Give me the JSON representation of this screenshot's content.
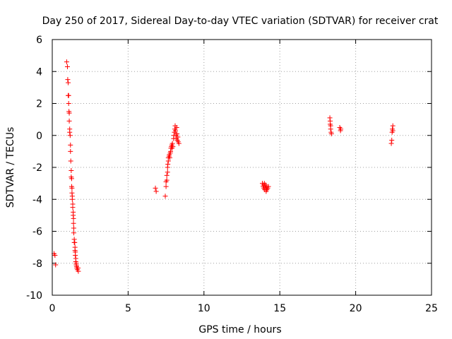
{
  "chart_data": {
    "type": "scatter",
    "title": "Day 250 of 2017, Sidereal Day-to-day VTEC variation (SDTVAR) for receiver crat",
    "xlabel": "GPS time / hours",
    "ylabel": "SDTVAR / TECUs",
    "xlim": [
      0,
      25
    ],
    "ylim": [
      -10,
      6
    ],
    "xticks": [
      0,
      5,
      10,
      15,
      20,
      25
    ],
    "yticks": [
      -10,
      -8,
      -6,
      -4,
      -2,
      0,
      2,
      4,
      6
    ],
    "grid": true,
    "legend": "none",
    "marker": "+",
    "series": [
      {
        "name": "SDTVAR",
        "color": "#ff0000",
        "points": [
          [
            0.12,
            -7.4
          ],
          [
            0.18,
            -7.5
          ],
          [
            0.22,
            -8.1
          ],
          [
            0.95,
            4.6
          ],
          [
            1.0,
            4.3
          ],
          [
            1.02,
            3.5
          ],
          [
            1.05,
            3.3
          ],
          [
            1.05,
            2.5
          ],
          [
            1.08,
            2.5
          ],
          [
            1.08,
            2.0
          ],
          [
            1.1,
            1.5
          ],
          [
            1.12,
            1.4
          ],
          [
            1.12,
            0.9
          ],
          [
            1.15,
            0.4
          ],
          [
            1.15,
            0.2
          ],
          [
            1.18,
            0.0
          ],
          [
            1.2,
            -0.6
          ],
          [
            1.2,
            -1.0
          ],
          [
            1.22,
            -1.6
          ],
          [
            1.25,
            -2.2
          ],
          [
            1.25,
            -2.6
          ],
          [
            1.28,
            -2.7
          ],
          [
            1.28,
            -3.2
          ],
          [
            1.3,
            -3.3
          ],
          [
            1.3,
            -3.6
          ],
          [
            1.32,
            -3.8
          ],
          [
            1.32,
            -4.0
          ],
          [
            1.35,
            -4.3
          ],
          [
            1.35,
            -4.5
          ],
          [
            1.38,
            -4.8
          ],
          [
            1.38,
            -5.0
          ],
          [
            1.4,
            -5.2
          ],
          [
            1.4,
            -5.5
          ],
          [
            1.42,
            -5.8
          ],
          [
            1.42,
            -6.1
          ],
          [
            1.45,
            -6.5
          ],
          [
            1.45,
            -6.7
          ],
          [
            1.48,
            -6.7
          ],
          [
            1.5,
            -7.0
          ],
          [
            1.5,
            -7.2
          ],
          [
            1.52,
            -7.3
          ],
          [
            1.52,
            -7.5
          ],
          [
            1.55,
            -7.7
          ],
          [
            1.55,
            -7.9
          ],
          [
            1.58,
            -8.0
          ],
          [
            1.58,
            -8.1
          ],
          [
            1.6,
            -8.2
          ],
          [
            1.62,
            -8.3
          ],
          [
            1.65,
            -8.4
          ],
          [
            1.7,
            -8.3
          ],
          [
            1.72,
            -8.5
          ],
          [
            6.8,
            -3.3
          ],
          [
            6.85,
            -3.5
          ],
          [
            7.45,
            -3.8
          ],
          [
            7.5,
            -3.2
          ],
          [
            7.5,
            -2.9
          ],
          [
            7.55,
            -2.8
          ],
          [
            7.55,
            -2.5
          ],
          [
            7.6,
            -2.3
          ],
          [
            7.6,
            -2.0
          ],
          [
            7.62,
            -1.8
          ],
          [
            7.65,
            -1.6
          ],
          [
            7.65,
            -1.4
          ],
          [
            7.7,
            -1.3
          ],
          [
            7.72,
            -1.2
          ],
          [
            7.75,
            -1.4
          ],
          [
            7.78,
            -1.1
          ],
          [
            7.8,
            -1.0
          ],
          [
            7.82,
            -0.8
          ],
          [
            7.85,
            -0.7
          ],
          [
            7.88,
            -0.6
          ],
          [
            7.9,
            -0.8
          ],
          [
            7.92,
            -0.5
          ],
          [
            7.95,
            -0.7
          ],
          [
            8.0,
            -0.2
          ],
          [
            8.02,
            0.0
          ],
          [
            8.05,
            0.2
          ],
          [
            8.08,
            0.4
          ],
          [
            8.1,
            0.6
          ],
          [
            8.12,
            0.3
          ],
          [
            8.15,
            0.0
          ],
          [
            8.18,
            -0.2
          ],
          [
            8.2,
            0.5
          ],
          [
            8.22,
            0.1
          ],
          [
            8.25,
            -0.3
          ],
          [
            8.28,
            -0.1
          ],
          [
            8.3,
            -0.4
          ],
          [
            8.35,
            -0.5
          ],
          [
            13.85,
            -3.0
          ],
          [
            13.9,
            -3.2
          ],
          [
            13.92,
            -3.1
          ],
          [
            13.95,
            -3.3
          ],
          [
            13.98,
            -3.0
          ],
          [
            14.0,
            -3.4
          ],
          [
            14.02,
            -3.2
          ],
          [
            14.05,
            -3.1
          ],
          [
            14.08,
            -3.3
          ],
          [
            14.1,
            -3.5
          ],
          [
            14.12,
            -3.2
          ],
          [
            14.15,
            -3.4
          ],
          [
            14.2,
            -3.3
          ],
          [
            14.25,
            -3.2
          ],
          [
            18.3,
            1.1
          ],
          [
            18.32,
            0.9
          ],
          [
            18.32,
            0.7
          ],
          [
            18.35,
            0.6
          ],
          [
            18.35,
            0.4
          ],
          [
            18.38,
            0.2
          ],
          [
            18.4,
            0.1
          ],
          [
            18.95,
            0.5
          ],
          [
            19.0,
            0.3
          ],
          [
            19.02,
            0.4
          ],
          [
            22.35,
            -0.5
          ],
          [
            22.38,
            -0.3
          ],
          [
            22.4,
            0.2
          ],
          [
            22.42,
            0.4
          ],
          [
            22.45,
            0.6
          ],
          [
            22.45,
            0.3
          ]
        ]
      }
    ]
  }
}
